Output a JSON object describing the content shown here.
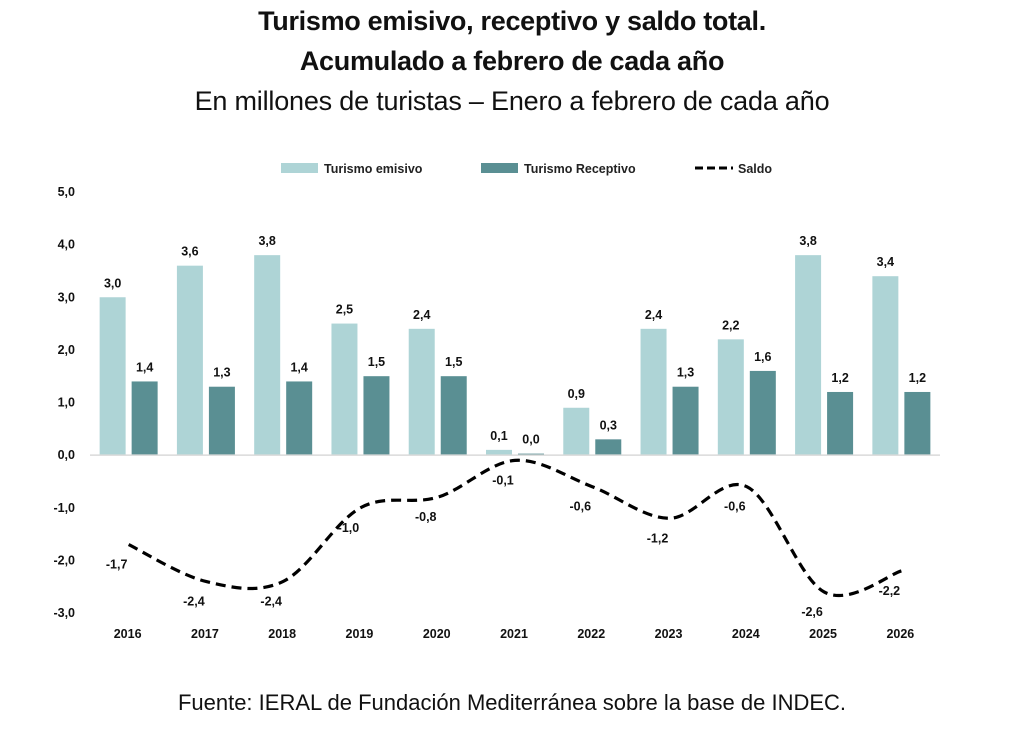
{
  "header": {
    "title_line1": "Turismo emisivo, receptivo y saldo total.",
    "title_line2": "Acumulado a febrero de cada año",
    "subtitle": "En millones de turistas – Enero a febrero de cada año"
  },
  "footer": {
    "source": "Fuente: IERAL de Fundación Mediterránea sobre la base de INDEC."
  },
  "colors": {
    "emisivo": "#aed4d6",
    "receptivo": "#5a8f93",
    "saldo": "#000000",
    "axis": "#d9d9d9"
  },
  "chart_data": {
    "type": "bar",
    "title": "Turismo emisivo, receptivo y saldo total. Acumulado a febrero de cada año",
    "subtitle": "En millones de turistas – Enero a febrero de cada año",
    "xlabel": "",
    "ylabel": "",
    "ylim": [
      -3.0,
      5.0
    ],
    "yticks": [
      5.0,
      4.0,
      3.0,
      2.0,
      1.0,
      0.0,
      -1.0,
      -2.0,
      -3.0
    ],
    "ytick_labels": [
      "5,0",
      "4,0",
      "3,0",
      "2,0",
      "1,0",
      "0,0",
      "-1,0",
      "-2,0",
      "-3,0"
    ],
    "grid": false,
    "legend_position": "top",
    "categories": [
      "2016",
      "2017",
      "2018",
      "2019",
      "2020",
      "2021",
      "2022",
      "2023",
      "2024",
      "2025",
      "2026"
    ],
    "series": [
      {
        "name": "Turismo emisivo",
        "kind": "bar",
        "values": [
          3.0,
          3.6,
          3.8,
          2.5,
          2.4,
          0.1,
          0.9,
          2.4,
          2.2,
          3.8,
          3.4
        ],
        "labels": [
          "3,0",
          "3,6",
          "3,8",
          "2,5",
          "2,4",
          "0,1",
          "0,9",
          "2,4",
          "2,2",
          "3,8",
          "3,4"
        ]
      },
      {
        "name": "Turismo Receptivo",
        "kind": "bar",
        "values": [
          1.4,
          1.3,
          1.4,
          1.5,
          1.5,
          0.0,
          0.3,
          1.3,
          1.6,
          1.2,
          1.2
        ],
        "labels": [
          "1,4",
          "1,3",
          "1,4",
          "1,5",
          "1,5",
          "0,0",
          "0,3",
          "1,3",
          "1,6",
          "1,2",
          "1,2"
        ]
      },
      {
        "name": "Saldo",
        "kind": "line",
        "style": "dashed-smooth",
        "values": [
          -1.7,
          -2.4,
          -2.4,
          -1.0,
          -0.8,
          -0.1,
          -0.6,
          -1.2,
          -0.6,
          -2.6,
          -2.2
        ],
        "labels": [
          "-1,7",
          "-2,4",
          "-2,4",
          "-1,0",
          "-0,8",
          "-0,1",
          "-0,6",
          "-1,2",
          "-0,6",
          "-2,6",
          "-2,2"
        ]
      }
    ]
  }
}
